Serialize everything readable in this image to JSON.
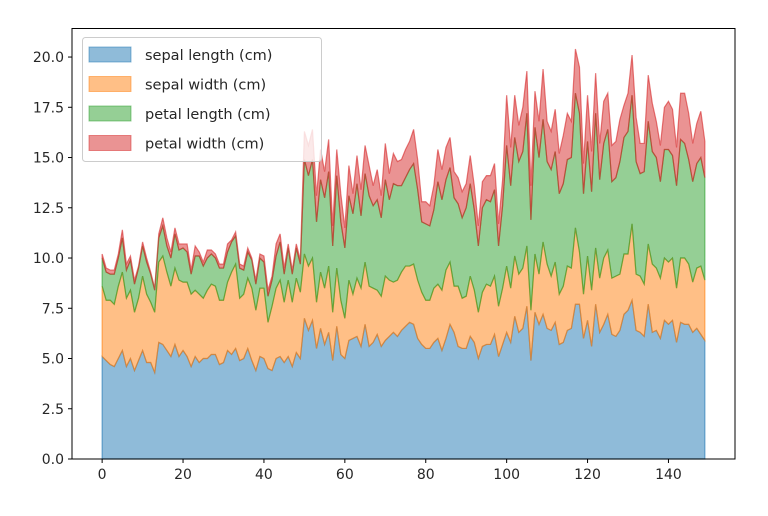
{
  "chart_data": {
    "type": "area",
    "stacked": true,
    "title": "",
    "xlabel": "",
    "ylabel": "",
    "xlim": [
      -7.45,
      156.45
    ],
    "ylim": [
      0,
      21.42
    ],
    "xticks": [
      0,
      20,
      40,
      60,
      80,
      100,
      120,
      140
    ],
    "yticks": [
      0.0,
      2.5,
      5.0,
      7.5,
      10.0,
      12.5,
      15.0,
      17.5,
      20.0
    ],
    "ytick_labels": [
      "0.0",
      "2.5",
      "5.0",
      "7.5",
      "10.0",
      "12.5",
      "15.0",
      "17.5",
      "20.0"
    ],
    "xtick_labels": [
      "0",
      "20",
      "40",
      "60",
      "80",
      "100",
      "120",
      "140"
    ],
    "grid": false,
    "legend_placement": "upper-left",
    "alpha": 0.5,
    "series": [
      {
        "name": "sepal length (cm)",
        "color": "#1f77b4",
        "values": [
          5.1,
          4.9,
          4.7,
          4.6,
          5.0,
          5.4,
          4.6,
          5.0,
          4.4,
          4.9,
          5.4,
          4.8,
          4.8,
          4.3,
          5.8,
          5.7,
          5.4,
          5.1,
          5.7,
          5.1,
          5.4,
          5.1,
          4.6,
          5.1,
          4.8,
          5.0,
          5.0,
          5.2,
          5.2,
          4.7,
          4.8,
          5.4,
          5.2,
          5.5,
          4.9,
          5.0,
          5.5,
          4.9,
          4.4,
          5.1,
          5.0,
          4.5,
          4.4,
          5.0,
          5.1,
          4.8,
          5.1,
          4.6,
          5.3,
          5.0,
          7.0,
          6.4,
          6.9,
          5.5,
          6.5,
          5.7,
          6.3,
          4.9,
          6.6,
          5.2,
          5.0,
          5.9,
          6.0,
          6.1,
          5.6,
          6.7,
          5.6,
          5.8,
          6.2,
          5.6,
          5.9,
          6.1,
          6.3,
          6.1,
          6.4,
          6.6,
          6.8,
          6.7,
          6.0,
          5.7,
          5.5,
          5.5,
          5.8,
          6.0,
          5.4,
          6.0,
          6.7,
          6.3,
          5.6,
          5.5,
          5.5,
          6.1,
          5.8,
          5.0,
          5.6,
          5.7,
          5.7,
          6.2,
          5.1,
          5.7,
          6.3,
          5.8,
          7.1,
          6.3,
          6.5,
          7.6,
          4.9,
          7.3,
          6.7,
          7.2,
          6.5,
          6.4,
          6.8,
          5.7,
          5.8,
          6.4,
          6.5,
          7.7,
          7.7,
          6.0,
          6.9,
          5.6,
          7.7,
          6.3,
          6.7,
          7.2,
          6.2,
          6.1,
          6.4,
          7.2,
          7.4,
          7.9,
          6.4,
          6.3,
          6.1,
          7.7,
          6.3,
          6.4,
          6.0,
          6.9,
          6.7,
          6.9,
          5.8,
          6.8,
          6.7,
          6.7,
          6.3,
          6.5,
          6.2,
          5.9
        ]
      },
      {
        "name": "sepal width (cm)",
        "color": "#ff7f0e",
        "values": [
          3.5,
          3.0,
          3.2,
          3.1,
          3.6,
          3.9,
          3.4,
          3.4,
          2.9,
          3.1,
          3.7,
          3.4,
          3.0,
          3.0,
          4.0,
          4.4,
          3.9,
          3.5,
          3.8,
          3.8,
          3.4,
          3.7,
          3.6,
          3.3,
          3.4,
          3.0,
          3.4,
          3.5,
          3.4,
          3.2,
          3.1,
          3.4,
          4.1,
          4.2,
          3.1,
          3.2,
          3.5,
          3.6,
          3.0,
          3.4,
          3.5,
          2.3,
          3.2,
          3.5,
          3.8,
          3.0,
          3.8,
          3.2,
          3.7,
          3.3,
          3.2,
          3.2,
          3.1,
          2.3,
          2.8,
          2.8,
          3.3,
          2.4,
          2.9,
          2.7,
          2.0,
          3.0,
          2.2,
          2.9,
          2.9,
          3.1,
          3.0,
          2.7,
          2.2,
          2.5,
          3.2,
          2.8,
          2.5,
          2.8,
          2.9,
          3.0,
          2.8,
          3.0,
          2.9,
          2.6,
          2.4,
          2.4,
          2.7,
          2.7,
          3.0,
          3.4,
          3.1,
          2.3,
          3.0,
          2.5,
          2.6,
          3.0,
          2.6,
          2.3,
          2.7,
          3.0,
          2.9,
          2.9,
          2.5,
          2.8,
          3.3,
          2.7,
          3.0,
          2.9,
          3.0,
          3.0,
          2.5,
          2.9,
          2.5,
          3.6,
          3.2,
          2.7,
          3.0,
          2.5,
          2.8,
          3.2,
          3.0,
          3.8,
          2.6,
          2.2,
          3.2,
          2.8,
          2.8,
          2.7,
          3.3,
          3.2,
          2.8,
          3.0,
          2.8,
          3.0,
          2.8,
          3.8,
          2.8,
          2.8,
          2.6,
          3.0,
          3.4,
          3.1,
          3.0,
          3.1,
          3.1,
          3.1,
          2.7,
          3.2,
          3.3,
          3.0,
          2.5,
          3.0,
          3.4,
          3.0
        ]
      },
      {
        "name": "petal length (cm)",
        "color": "#2ca02c",
        "values": [
          1.4,
          1.4,
          1.3,
          1.5,
          1.4,
          1.7,
          1.4,
          1.5,
          1.4,
          1.5,
          1.5,
          1.6,
          1.4,
          1.1,
          1.2,
          1.5,
          1.3,
          1.4,
          1.7,
          1.5,
          1.7,
          1.5,
          1.0,
          1.7,
          1.9,
          1.6,
          1.6,
          1.5,
          1.4,
          1.6,
          1.6,
          1.5,
          1.5,
          1.4,
          1.5,
          1.2,
          1.3,
          1.4,
          1.3,
          1.5,
          1.3,
          1.3,
          1.3,
          1.6,
          1.9,
          1.4,
          1.6,
          1.4,
          1.5,
          1.4,
          4.7,
          4.5,
          4.9,
          4.0,
          4.6,
          4.5,
          4.7,
          3.3,
          4.6,
          3.9,
          3.5,
          4.2,
          4.0,
          4.7,
          3.6,
          4.4,
          4.5,
          4.1,
          4.5,
          3.9,
          4.8,
          4.0,
          4.9,
          4.7,
          4.3,
          4.4,
          4.8,
          5.0,
          4.5,
          3.5,
          3.8,
          3.7,
          3.9,
          5.1,
          4.5,
          4.5,
          4.7,
          4.4,
          4.1,
          4.0,
          4.4,
          4.6,
          4.0,
          3.3,
          4.2,
          4.2,
          4.2,
          4.3,
          3.0,
          4.1,
          6.0,
          5.1,
          5.9,
          5.6,
          5.8,
          6.6,
          4.5,
          6.3,
          5.8,
          6.1,
          5.1,
          5.3,
          5.5,
          5.0,
          5.1,
          5.3,
          5.5,
          6.7,
          6.9,
          5.0,
          5.7,
          4.9,
          6.7,
          4.9,
          5.7,
          6.0,
          4.8,
          4.9,
          5.6,
          5.8,
          6.1,
          6.4,
          5.6,
          5.1,
          5.6,
          6.1,
          5.6,
          5.5,
          4.8,
          5.4,
          5.6,
          5.1,
          5.1,
          5.9,
          5.7,
          5.2,
          5.0,
          5.2,
          5.4,
          5.1
        ]
      },
      {
        "name": "petal width (cm)",
        "color": "#d62728",
        "values": [
          0.2,
          0.2,
          0.2,
          0.2,
          0.2,
          0.4,
          0.3,
          0.2,
          0.2,
          0.1,
          0.2,
          0.2,
          0.1,
          0.1,
          0.2,
          0.4,
          0.4,
          0.3,
          0.3,
          0.3,
          0.2,
          0.4,
          0.2,
          0.5,
          0.2,
          0.2,
          0.4,
          0.2,
          0.2,
          0.2,
          0.2,
          0.4,
          0.1,
          0.2,
          0.2,
          0.2,
          0.2,
          0.1,
          0.2,
          0.2,
          0.3,
          0.3,
          0.2,
          0.6,
          0.4,
          0.3,
          0.2,
          0.2,
          0.2,
          0.2,
          1.4,
          1.5,
          1.5,
          1.3,
          1.5,
          1.3,
          1.6,
          1.0,
          1.3,
          1.4,
          1.0,
          1.5,
          1.0,
          1.4,
          1.3,
          1.4,
          1.5,
          1.0,
          1.5,
          1.1,
          1.8,
          1.3,
          1.5,
          1.2,
          1.3,
          1.4,
          1.4,
          1.7,
          1.5,
          1.0,
          1.1,
          1.0,
          1.2,
          1.6,
          1.5,
          1.6,
          1.5,
          1.3,
          1.3,
          1.3,
          1.2,
          1.4,
          1.2,
          1.0,
          1.3,
          1.2,
          1.3,
          1.3,
          1.1,
          1.3,
          2.5,
          1.9,
          2.1,
          1.8,
          2.2,
          2.1,
          1.7,
          1.8,
          1.8,
          2.5,
          2.0,
          1.9,
          2.1,
          2.0,
          2.4,
          2.3,
          1.8,
          2.2,
          2.3,
          1.5,
          2.3,
          2.0,
          2.0,
          1.8,
          2.1,
          1.8,
          1.8,
          1.8,
          2.1,
          1.6,
          1.9,
          2.0,
          2.2,
          1.5,
          1.4,
          2.3,
          2.4,
          1.8,
          1.8,
          2.1,
          2.4,
          2.3,
          1.9,
          2.3,
          2.5,
          2.3,
          1.9,
          2.0,
          2.3,
          1.8
        ]
      }
    ]
  }
}
